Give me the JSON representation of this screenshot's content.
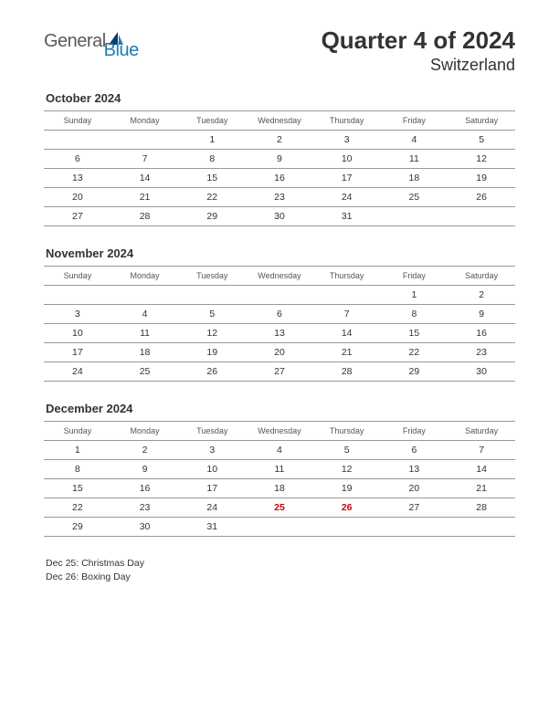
{
  "logo": {
    "text1": "General",
    "text2": "Blue",
    "color_gray": "#5a5a5a",
    "color_blue": "#1e7bb8"
  },
  "header": {
    "title": "Quarter 4 of 2024",
    "subtitle": "Switzerland"
  },
  "day_headers": [
    "Sunday",
    "Monday",
    "Tuesday",
    "Wednesday",
    "Thursday",
    "Friday",
    "Saturday"
  ],
  "months": [
    {
      "title": "October 2024",
      "weeks": [
        [
          "",
          "",
          "1",
          "2",
          "3",
          "4",
          "5"
        ],
        [
          "6",
          "7",
          "8",
          "9",
          "10",
          "11",
          "12"
        ],
        [
          "13",
          "14",
          "15",
          "16",
          "17",
          "18",
          "19"
        ],
        [
          "20",
          "21",
          "22",
          "23",
          "24",
          "25",
          "26"
        ],
        [
          "27",
          "28",
          "29",
          "30",
          "31",
          "",
          ""
        ]
      ],
      "holidays": []
    },
    {
      "title": "November 2024",
      "weeks": [
        [
          "",
          "",
          "",
          "",
          "",
          "1",
          "2"
        ],
        [
          "3",
          "4",
          "5",
          "6",
          "7",
          "8",
          "9"
        ],
        [
          "10",
          "11",
          "12",
          "13",
          "14",
          "15",
          "16"
        ],
        [
          "17",
          "18",
          "19",
          "20",
          "21",
          "22",
          "23"
        ],
        [
          "24",
          "25",
          "26",
          "27",
          "28",
          "29",
          "30"
        ]
      ],
      "holidays": []
    },
    {
      "title": "December 2024",
      "weeks": [
        [
          "1",
          "2",
          "3",
          "4",
          "5",
          "6",
          "7"
        ],
        [
          "8",
          "9",
          "10",
          "11",
          "12",
          "13",
          "14"
        ],
        [
          "15",
          "16",
          "17",
          "18",
          "19",
          "20",
          "21"
        ],
        [
          "22",
          "23",
          "24",
          "25",
          "26",
          "27",
          "28"
        ],
        [
          "29",
          "30",
          "31",
          "",
          "",
          "",
          ""
        ]
      ],
      "holidays": [
        "25",
        "26"
      ]
    }
  ],
  "holiday_list": [
    "Dec 25: Christmas Day",
    "Dec 26: Boxing Day"
  ],
  "style": {
    "background_color": "#ffffff",
    "text_color": "#333333",
    "holiday_color": "#cc0000",
    "border_color": "#999999",
    "header_fontsize": 26,
    "subtitle_fontsize": 18,
    "month_title_fontsize": 13,
    "dayheader_fontsize": 9,
    "cell_fontsize": 10.5
  }
}
